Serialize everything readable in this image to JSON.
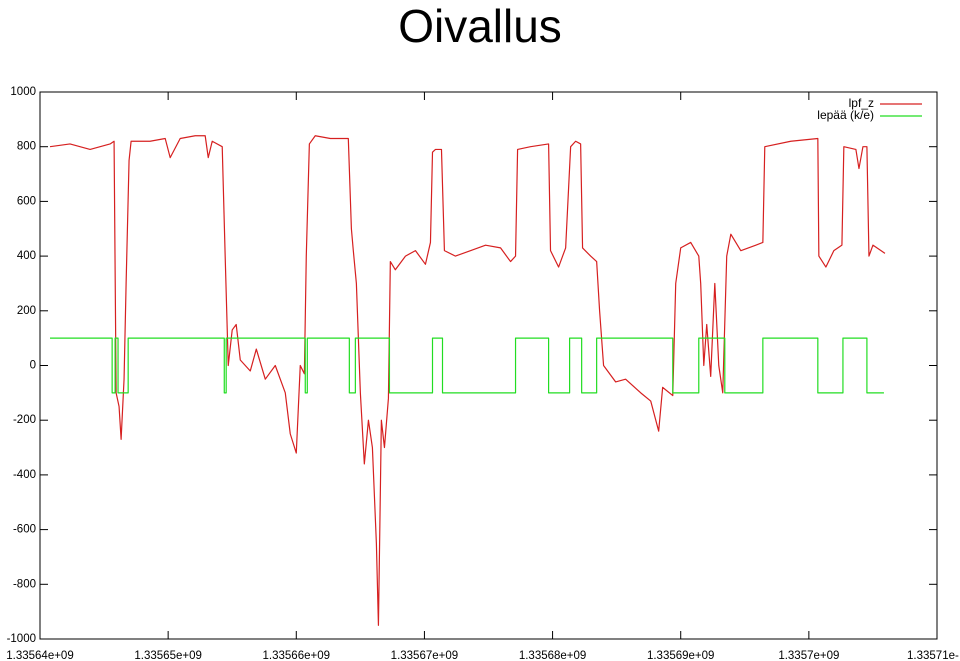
{
  "chart_data": {
    "type": "line",
    "title": "Oivallus",
    "xlim": [
      1335640000,
      1335710000
    ],
    "xticks": [
      {
        "value": 1335640000,
        "label": "1.33564e+09"
      },
      {
        "value": 1335650000,
        "label": "1.33565e+09"
      },
      {
        "value": 1335660000,
        "label": "1.33566e+09"
      },
      {
        "value": 1335670000,
        "label": "1.33567e+09"
      },
      {
        "value": 1335680000,
        "label": "1.33568e+09"
      },
      {
        "value": 1335690000,
        "label": "1.33569e+09"
      },
      {
        "value": 1335700000,
        "label": "1.3357e+09"
      },
      {
        "value": 1335710000,
        "label": "1.33571e-"
      }
    ],
    "ylim": [
      -1000,
      1000
    ],
    "yticks": [
      -1000,
      -800,
      -600,
      -400,
      -200,
      0,
      200,
      400,
      600,
      800,
      1000
    ],
    "grid": false,
    "legend": "top right",
    "series": [
      {
        "name": "lpf_z",
        "color": "#d62020",
        "x": [
          1335640780,
          1335642340,
          1335643910,
          1335644690,
          1335645470,
          1335645780,
          1335645940,
          1335646170,
          1335646330,
          1335646560,
          1335646720,
          1335646950,
          1335647110,
          1335648590,
          1335649770,
          1335650160,
          1335650940,
          1335652110,
          1335652890,
          1335653130,
          1335653440,
          1335654220,
          1335654450,
          1335654690,
          1335655000,
          1335655310,
          1335655630,
          1335656410,
          1335656880,
          1335657580,
          1335658360,
          1335659140,
          1335659530,
          1335660000,
          1335660310,
          1335660630,
          1335660780,
          1335661020,
          1335661480,
          1335662660,
          1335664060,
          1335664300,
          1335664450,
          1335664690,
          1335665000,
          1335665310,
          1335665630,
          1335665940,
          1335666250,
          1335666410,
          1335666640,
          1335666880,
          1335667190,
          1335667340,
          1335667730,
          1335668520,
          1335669300,
          1335670080,
          1335670470,
          1335670630,
          1335670860,
          1335671330,
          1335671560,
          1335672420,
          1335673590,
          1335674770,
          1335675940,
          1335676720,
          1335677110,
          1335677270,
          1335678280,
          1335679690,
          1335679840,
          1335680470,
          1335681020,
          1335681410,
          1335681800,
          1335682190,
          1335682340,
          1335682970,
          1335683440,
          1335683670,
          1335683980,
          1335684920,
          1335685700,
          1335686880,
          1335687660,
          1335688280,
          1335688590,
          1335689380,
          1335689610,
          1335690000,
          1335690780,
          1335691410,
          1335691560,
          1335691800,
          1335692030,
          1335692340,
          1335692660,
          1335692970,
          1335693280,
          1335693590,
          1335693910,
          1335694690,
          1335695860,
          1335696410,
          1335696560,
          1335698590,
          1335700700,
          1335700780,
          1335701330,
          1335701950,
          1335702580,
          1335702730,
          1335703670,
          1335703910,
          1335704220,
          1335704530,
          1335704690,
          1335705000,
          1335705630,
          1335705940
        ],
        "values": [
          800,
          810,
          790,
          800,
          810,
          820,
          -100,
          -150,
          -270,
          -50,
          300,
          750,
          820,
          820,
          830,
          760,
          830,
          840,
          840,
          760,
          820,
          800,
          400,
          0,
          130,
          150,
          20,
          -20,
          60,
          -50,
          0,
          -100,
          -250,
          -320,
          0,
          -30,
          400,
          810,
          840,
          830,
          830,
          500,
          420,
          300,
          -100,
          -360,
          -200,
          -300,
          -650,
          -950,
          -200,
          -300,
          -120,
          380,
          350,
          400,
          420,
          370,
          450,
          780,
          790,
          790,
          420,
          400,
          420,
          440,
          430,
          380,
          400,
          790,
          800,
          810,
          420,
          360,
          430,
          800,
          820,
          810,
          430,
          400,
          380,
          200,
          0,
          -60,
          -50,
          -100,
          -130,
          -240,
          -80,
          -110,
          300,
          430,
          450,
          400,
          300,
          0,
          150,
          -40,
          300,
          0,
          -100,
          400,
          480,
          420,
          440,
          450,
          800,
          820,
          830,
          400,
          360,
          420,
          440,
          800,
          790,
          720,
          800,
          800,
          400,
          440,
          420,
          410
        ]
      },
      {
        "name": "lepää (k/e)",
        "color": "#22dd22",
        "x": [
          1335640780,
          1335645630,
          1335645630,
          1335645860,
          1335645860,
          1335646090,
          1335646090,
          1335646880,
          1335646880,
          1335654380,
          1335654380,
          1335654530,
          1335654530,
          1335660700,
          1335660700,
          1335660860,
          1335660860,
          1335664140,
          1335664140,
          1335664610,
          1335664610,
          1335667270,
          1335667270,
          1335670630,
          1335670630,
          1335671410,
          1335671410,
          1335677110,
          1335677110,
          1335679690,
          1335679690,
          1335681330,
          1335681330,
          1335682270,
          1335682270,
          1335683440,
          1335683440,
          1335689380,
          1335689380,
          1335691410,
          1335691410,
          1335693440,
          1335693440,
          1335696410,
          1335696410,
          1335700700,
          1335700700,
          1335702660,
          1335702660,
          1335704530,
          1335704530,
          1335705860
        ],
        "values": [
          100,
          100,
          -100,
          -100,
          100,
          100,
          -100,
          -100,
          100,
          100,
          -100,
          -100,
          100,
          100,
          -100,
          -100,
          100,
          100,
          -100,
          -100,
          100,
          100,
          -100,
          -100,
          100,
          100,
          -100,
          -100,
          100,
          100,
          -100,
          -100,
          100,
          100,
          -100,
          -100,
          100,
          100,
          -100,
          -100,
          100,
          100,
          -100,
          -100,
          100,
          100,
          -100,
          -100,
          100,
          100,
          -100,
          -100
        ]
      }
    ]
  }
}
